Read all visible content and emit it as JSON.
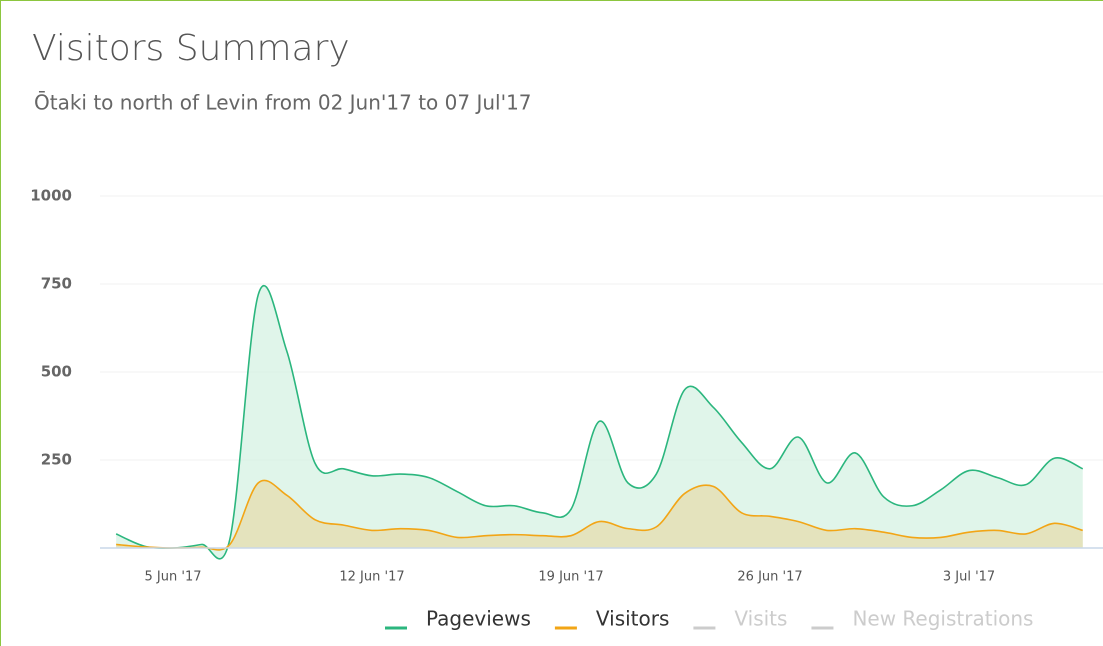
{
  "chart_data": {
    "type": "area",
    "title": "Visitors Summary",
    "subtitle": "Ōtaki to north of Levin from 02 Jun'17 to 07 Jul'17",
    "x": [
      "2017-06-03",
      "2017-06-04",
      "2017-06-05",
      "2017-06-06",
      "2017-06-07",
      "2017-06-08",
      "2017-06-09",
      "2017-06-10",
      "2017-06-11",
      "2017-06-12",
      "2017-06-13",
      "2017-06-14",
      "2017-06-15",
      "2017-06-16",
      "2017-06-17",
      "2017-06-18",
      "2017-06-19",
      "2017-06-20",
      "2017-06-21",
      "2017-06-22",
      "2017-06-23",
      "2017-06-24",
      "2017-06-25",
      "2017-06-26",
      "2017-06-27",
      "2017-06-28",
      "2017-06-29",
      "2017-06-30",
      "2017-07-01",
      "2017-07-02",
      "2017-07-03",
      "2017-07-04",
      "2017-07-05",
      "2017-07-06",
      "2017-07-07"
    ],
    "series": [
      {
        "name": "Pageviews",
        "color": "#2bb67e",
        "fill": "#d5f2e3",
        "visible": true,
        "values": [
          40,
          5,
          0,
          10,
          25,
          720,
          560,
          240,
          225,
          205,
          210,
          200,
          160,
          120,
          120,
          100,
          110,
          360,
          185,
          210,
          450,
          400,
          300,
          225,
          315,
          185,
          270,
          145,
          120,
          165,
          220,
          200,
          180,
          255,
          225
        ]
      },
      {
        "name": "Visitors",
        "color": "#f2a516",
        "fill": "#e6dcae",
        "visible": true,
        "values": [
          10,
          3,
          0,
          2,
          10,
          185,
          150,
          80,
          65,
          50,
          55,
          50,
          30,
          35,
          38,
          35,
          35,
          75,
          55,
          60,
          155,
          175,
          100,
          90,
          75,
          50,
          55,
          45,
          30,
          30,
          45,
          50,
          40,
          70,
          50
        ]
      },
      {
        "name": "Visits",
        "color": "#cccccc",
        "visible": false
      },
      {
        "name": "New Registrations",
        "color": "#cccccc",
        "visible": false
      }
    ],
    "ylim": [
      0,
      1000
    ],
    "yticks": [
      250,
      500,
      750,
      1000
    ],
    "xticks": [
      {
        "value": "2017-06-05",
        "label": "5 Jun '17"
      },
      {
        "value": "2017-06-12",
        "label": "12 Jun '17"
      },
      {
        "value": "2017-06-19",
        "label": "19 Jun '17"
      },
      {
        "value": "2017-06-26",
        "label": "26 Jun '17"
      },
      {
        "value": "2017-07-03",
        "label": "3 Jul '17"
      }
    ],
    "grid": true,
    "legend": "bottom"
  }
}
